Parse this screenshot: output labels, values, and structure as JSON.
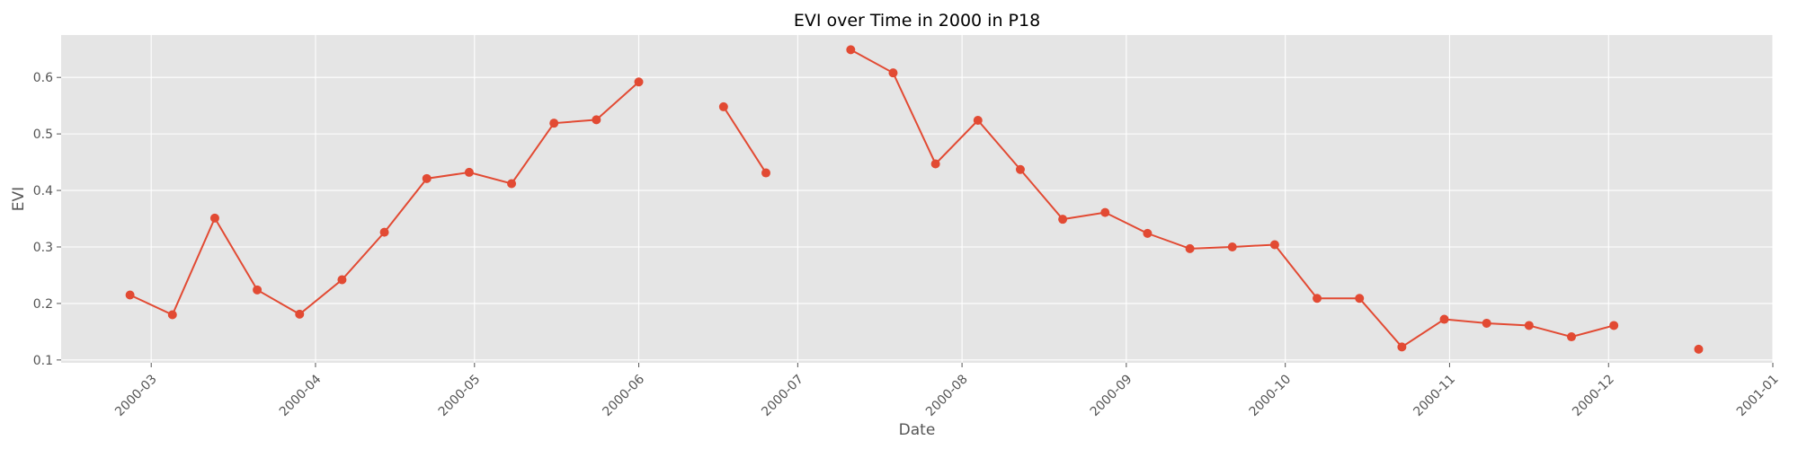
{
  "chart_data": {
    "type": "line",
    "title": "EVI over Time in 2000 in P18",
    "xlabel": "Date",
    "ylabel": "EVI",
    "xlim": [
      "2000-02-13",
      "2001-01-01"
    ],
    "ylim": [
      0.095,
      0.675
    ],
    "x_ticks": [
      "2000-03-01",
      "2000-04-01",
      "2000-05-01",
      "2000-06-01",
      "2000-07-01",
      "2000-08-01",
      "2000-09-01",
      "2000-10-01",
      "2000-11-01",
      "2000-12-01",
      "2001-01-01"
    ],
    "x_tick_labels": [
      "2000-03",
      "2000-04",
      "2000-05",
      "2000-06",
      "2000-07",
      "2000-08",
      "2000-09",
      "2000-10",
      "2000-11",
      "2000-12",
      "2001-01"
    ],
    "y_ticks": [
      0.1,
      0.2,
      0.3,
      0.4,
      0.5,
      0.6
    ],
    "y_tick_labels": [
      "0.1",
      "0.2",
      "0.3",
      "0.4",
      "0.5",
      "0.6"
    ],
    "grid": true,
    "colors": {
      "series": "#E24A33",
      "background": "#E5E5E5",
      "grid": "#FFFFFF"
    },
    "series": [
      {
        "points": [
          {
            "x": "2000-02-26",
            "y": 0.215
          },
          {
            "x": "2000-03-05",
            "y": 0.18
          },
          {
            "x": "2000-03-13",
            "y": 0.351
          },
          {
            "x": "2000-03-21",
            "y": 0.224
          },
          {
            "x": "2000-03-29",
            "y": 0.181
          },
          {
            "x": "2000-04-06",
            "y": 0.242
          },
          {
            "x": "2000-04-14",
            "y": 0.326
          },
          {
            "x": "2000-04-22",
            "y": 0.421
          },
          {
            "x": "2000-04-30",
            "y": 0.432
          },
          {
            "x": "2000-05-08",
            "y": 0.412
          },
          {
            "x": "2000-05-16",
            "y": 0.519
          },
          {
            "x": "2000-05-24",
            "y": 0.525
          },
          {
            "x": "2000-06-01",
            "y": 0.592
          },
          {
            "x": "2000-06-09",
            "y": null
          },
          {
            "x": "2000-06-17",
            "y": 0.548
          },
          {
            "x": "2000-06-25",
            "y": 0.431
          },
          {
            "x": "2000-07-03",
            "y": null
          },
          {
            "x": "2000-07-11",
            "y": 0.649
          },
          {
            "x": "2000-07-19",
            "y": 0.608
          },
          {
            "x": "2000-07-27",
            "y": 0.447
          },
          {
            "x": "2000-08-04",
            "y": 0.524
          },
          {
            "x": "2000-08-12",
            "y": 0.437
          },
          {
            "x": "2000-08-20",
            "y": 0.349
          },
          {
            "x": "2000-08-28",
            "y": 0.361
          },
          {
            "x": "2000-09-05",
            "y": 0.324
          },
          {
            "x": "2000-09-13",
            "y": 0.297
          },
          {
            "x": "2000-09-21",
            "y": 0.3
          },
          {
            "x": "2000-09-29",
            "y": 0.304
          },
          {
            "x": "2000-10-07",
            "y": 0.209
          },
          {
            "x": "2000-10-15",
            "y": 0.209
          },
          {
            "x": "2000-10-23",
            "y": 0.123
          },
          {
            "x": "2000-10-31",
            "y": 0.172
          },
          {
            "x": "2000-11-08",
            "y": 0.165
          },
          {
            "x": "2000-11-16",
            "y": 0.161
          },
          {
            "x": "2000-11-24",
            "y": 0.141
          },
          {
            "x": "2000-12-02",
            "y": 0.161
          },
          {
            "x": "2000-12-10",
            "y": null
          },
          {
            "x": "2000-12-18",
            "y": 0.119
          }
        ]
      }
    ]
  }
}
